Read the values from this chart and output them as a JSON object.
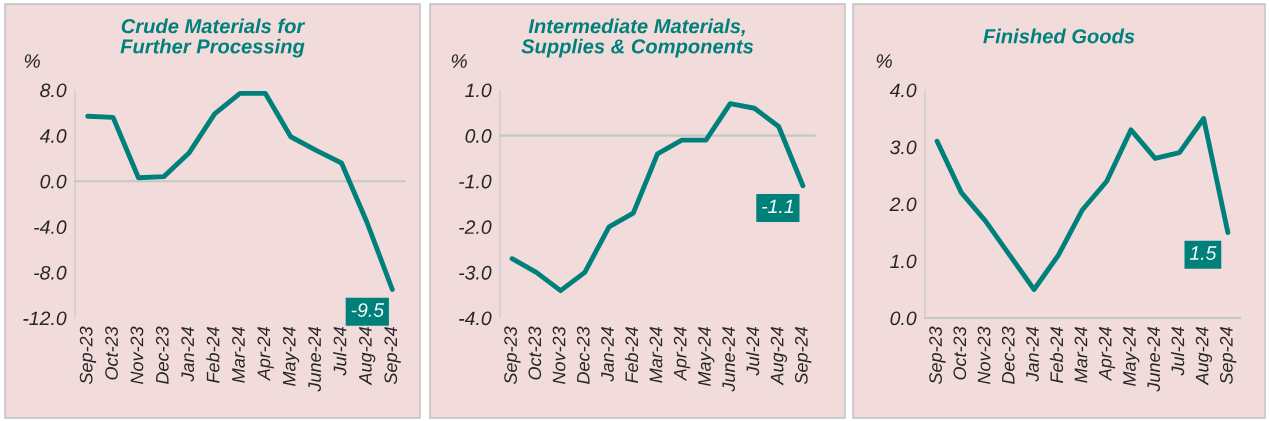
{
  "chart_data": [
    {
      "type": "line",
      "title": "Crude Materials for\nFurther Processing",
      "ylabel": "%",
      "categories": [
        "Sep-23",
        "Oct-23",
        "Nov-23",
        "Dec-23",
        "Jan-24",
        "Feb-24",
        "Mar-24",
        "Apr-24",
        "May-24",
        "June-24",
        "Jul-24",
        "Aug-24",
        "Sep-24"
      ],
      "series": [
        {
          "color": "#00807a",
          "values": [
            5.7,
            5.6,
            0.3,
            0.4,
            2.5,
            5.9,
            7.7,
            7.7,
            3.9,
            2.7,
            1.6,
            -3.6,
            -9.5
          ],
          "value_labels": [
            null,
            null,
            null,
            null,
            null,
            null,
            null,
            null,
            null,
            null,
            null,
            null,
            "-9.5"
          ]
        }
      ],
      "ylim": [
        -12,
        8
      ],
      "yticks": [
        {
          "value": -12,
          "label": "-12.0"
        },
        {
          "value": -8,
          "label": "-8.0"
        },
        {
          "value": -4,
          "label": "-4.0"
        },
        {
          "value": 0,
          "label": "0.0"
        },
        {
          "value": 4,
          "label": "4.0"
        },
        {
          "value": 8,
          "label": "8.0"
        }
      ],
      "ref_lines": [
        {
          "axis": "y",
          "value": 0,
          "color": "#c0c8c8"
        }
      ]
    },
    {
      "type": "line",
      "title": "Intermediate Materials,\nSupplies & Components",
      "ylabel": "%",
      "categories": [
        "Sep-23",
        "Oct-23",
        "Nov-23",
        "Dec-23",
        "Jan-24",
        "Feb-24",
        "Mar-24",
        "Apr-24",
        "May-24",
        "June-24",
        "Jul-24",
        "Aug-24",
        "Sep-24"
      ],
      "series": [
        {
          "color": "#00807a",
          "values": [
            -2.7,
            -3.0,
            -3.4,
            -3.0,
            -2.0,
            -1.7,
            -0.4,
            -0.1,
            -0.1,
            0.7,
            0.6,
            0.2,
            -1.1
          ],
          "value_labels": [
            null,
            null,
            null,
            null,
            null,
            null,
            null,
            null,
            null,
            null,
            null,
            null,
            "-1.1"
          ]
        }
      ],
      "ylim": [
        -4,
        1
      ],
      "yticks": [
        {
          "value": -4,
          "label": "-4.0"
        },
        {
          "value": -3,
          "label": "-3.0"
        },
        {
          "value": -2,
          "label": "-2.0"
        },
        {
          "value": -1,
          "label": "-1.0"
        },
        {
          "value": 0,
          "label": "0.0"
        },
        {
          "value": 1,
          "label": "1.0"
        }
      ],
      "ref_lines": [
        {
          "axis": "y",
          "value": 0,
          "color": "#c0c8c8"
        }
      ]
    },
    {
      "type": "line",
      "title": "Finished Goods",
      "ylabel": "%",
      "categories": [
        "Sep-23",
        "Oct-23",
        "Nov-23",
        "Dec-23",
        "Jan-24",
        "Feb-24",
        "Mar-24",
        "Apr-24",
        "May-24",
        "June-24",
        "Jul-24",
        "Aug-24",
        "Sep-24"
      ],
      "series": [
        {
          "color": "#00807a",
          "values": [
            3.1,
            2.2,
            1.7,
            1.1,
            0.5,
            1.1,
            1.9,
            2.4,
            3.3,
            2.8,
            2.9,
            3.5,
            1.5
          ],
          "value_labels": [
            null,
            null,
            null,
            null,
            null,
            null,
            null,
            null,
            null,
            null,
            null,
            null,
            "1.5"
          ]
        }
      ],
      "ylim": [
        0,
        4
      ],
      "yticks": [
        {
          "value": 0,
          "label": "0.0"
        },
        {
          "value": 1,
          "label": "1.0"
        },
        {
          "value": 2,
          "label": "2.0"
        },
        {
          "value": 3,
          "label": "3.0"
        },
        {
          "value": 4,
          "label": "4.0"
        }
      ]
    }
  ]
}
